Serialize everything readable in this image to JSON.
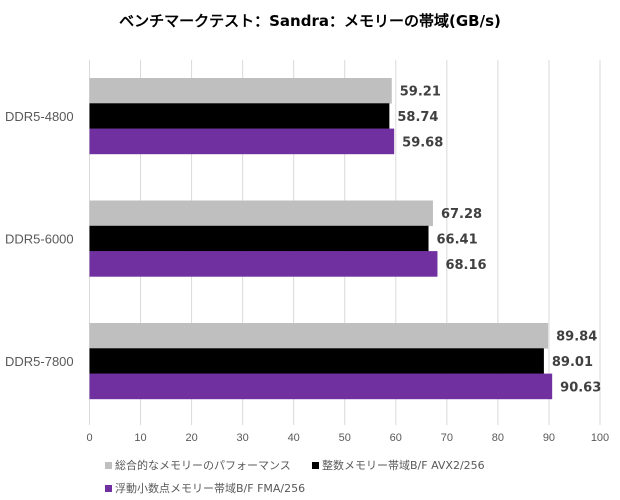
{
  "chart_data": {
    "type": "bar",
    "orientation": "horizontal",
    "title": "ベンチマークテスト：Sandra：メモリーの帯域(GB/s)",
    "categories": [
      "DDR5-4800",
      "DDR5-6000",
      "DDR5-7800"
    ],
    "series": [
      {
        "name": "総合的なメモリーのパフォーマンス",
        "color": "#BFBFBF",
        "values": [
          59.21,
          67.28,
          89.84
        ],
        "labels": [
          "59.21",
          "67.28",
          "89.84"
        ]
      },
      {
        "name": "整数メモリー帯域B/F AVX2/256",
        "color": "#000000",
        "values": [
          58.74,
          66.41,
          89.01
        ],
        "labels": [
          "58.74",
          "66.41",
          "89.01"
        ]
      },
      {
        "name": "浮動小数点メモリー帯域B/F FMA/256",
        "color": "#7030A0",
        "values": [
          59.68,
          68.16,
          90.63
        ],
        "labels": [
          "59.68",
          "68.16",
          "90.63"
        ]
      }
    ],
    "xlim": [
      0,
      100
    ],
    "xticks": [
      "0",
      "10",
      "20",
      "30",
      "40",
      "50",
      "60",
      "70",
      "80",
      "90",
      "100"
    ],
    "grid": true,
    "legend_position": "bottom"
  }
}
